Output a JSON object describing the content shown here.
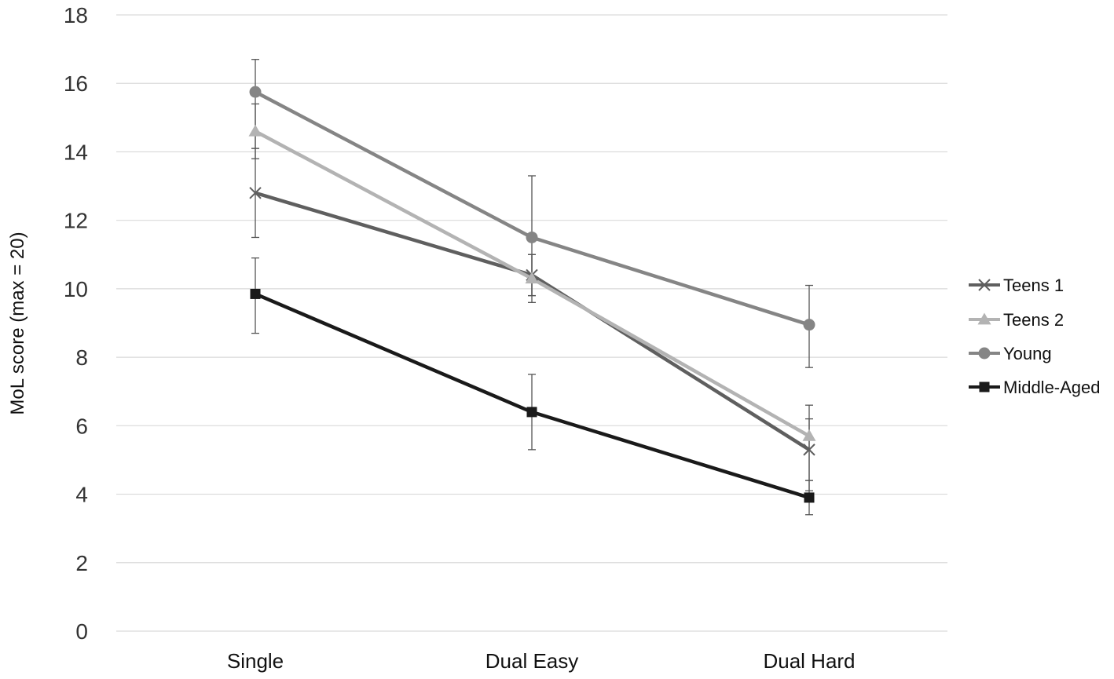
{
  "chart_data": {
    "type": "line",
    "title": "",
    "xlabel": "",
    "ylabel": "MoL score (max = 20)",
    "categories": [
      "Single",
      "Dual Easy",
      "Dual Hard"
    ],
    "ylim": [
      0,
      18
    ],
    "yticks": [
      0,
      2,
      4,
      6,
      8,
      10,
      12,
      14,
      16,
      18
    ],
    "grid": true,
    "legend_position": "right",
    "series": [
      {
        "name": "Teens 1",
        "color": "#5f5f5f",
        "marker": "x",
        "values": [
          12.8,
          10.4,
          5.3
        ],
        "error": [
          [
            11.5,
            14.1
          ],
          [
            9.8,
            11.0
          ],
          [
            4.1,
            6.6
          ]
        ]
      },
      {
        "name": "Teens 2",
        "color": "#b3b3b3",
        "marker": "triangle",
        "values": [
          14.6,
          10.3,
          5.7
        ],
        "error": [
          [
            13.8,
            15.4
          ],
          [
            9.6,
            11.0
          ],
          [
            4.4,
            6.2
          ]
        ]
      },
      {
        "name": "Young",
        "color": "#858585",
        "marker": "circle",
        "values": [
          15.75,
          11.5,
          8.95
        ],
        "error": [
          [
            14.1,
            16.7
          ],
          [
            9.8,
            13.3
          ],
          [
            7.7,
            10.1
          ]
        ]
      },
      {
        "name": "Middle-Aged",
        "color": "#1a1a1a",
        "marker": "square",
        "values": [
          9.85,
          6.4,
          3.9
        ],
        "error": [
          [
            8.7,
            10.9
          ],
          [
            5.3,
            7.5
          ],
          [
            3.4,
            4.4
          ]
        ]
      }
    ]
  }
}
